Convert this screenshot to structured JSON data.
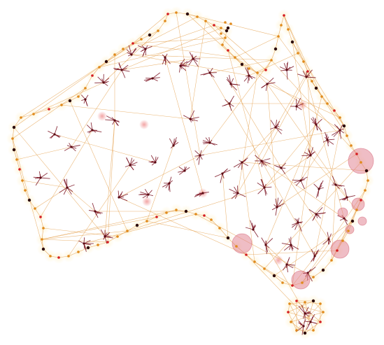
{
  "colors": {
    "background": "#ffffff",
    "coast_halo": "#fff1c8",
    "coast_node": "#e08a1c",
    "coast_node_dark": "#2b0508",
    "coast_node_red": "#d41c22",
    "link_line": "#e39b43",
    "hub_core": "#5a0a12",
    "hub_ray": "#7a1020",
    "bubble_fill": "#e07b8c",
    "bubble_stroke": "#d46478",
    "faint_glow": "#f3b2b2"
  },
  "marker_icons": [
    "hub-star-icon",
    "coast-dot-icon",
    "population-bubble-icon"
  ]
}
